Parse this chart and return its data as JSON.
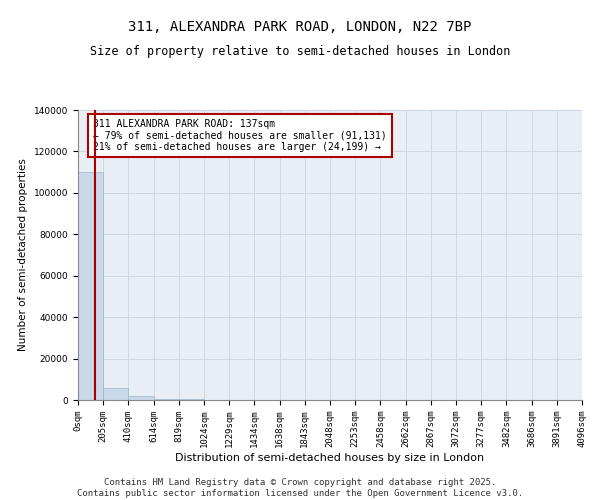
{
  "title": "311, ALEXANDRA PARK ROAD, LONDON, N22 7BP",
  "subtitle": "Size of property relative to semi-detached houses in London",
  "xlabel": "Distribution of semi-detached houses by size in London",
  "ylabel": "Number of semi-detached properties",
  "property_size": 137,
  "property_label": "311 ALEXANDRA PARK ROAD: 137sqm",
  "pct_smaller": 79,
  "count_smaller": 91131,
  "pct_larger": 21,
  "count_larger": 24199,
  "bar_color": "#c9d9ea",
  "bar_edgecolor": "#9ab5cc",
  "vline_color": "#aa0000",
  "annotation_edgecolor": "#aa0000",
  "grid_color": "#c8d4e0",
  "background_color": "#e8eef4",
  "bin_edges": [
    0,
    205,
    410,
    614,
    819,
    1024,
    1229,
    1434,
    1638,
    1843,
    2048,
    2253,
    2458,
    2662,
    2867,
    3072,
    3277,
    3482,
    3686,
    3891,
    4096
  ],
  "bin_counts": [
    110000,
    6000,
    1800,
    700,
    300,
    180,
    100,
    70,
    50,
    35,
    25,
    20,
    15,
    12,
    10,
    8,
    6,
    5,
    4,
    3
  ],
  "ylim": [
    0,
    140000
  ],
  "yticks": [
    0,
    20000,
    40000,
    60000,
    80000,
    100000,
    120000,
    140000
  ],
  "footer": "Contains HM Land Registry data © Crown copyright and database right 2025.\nContains public sector information licensed under the Open Government Licence v3.0.",
  "title_fontsize": 10,
  "subtitle_fontsize": 8.5,
  "tick_fontsize": 6.5,
  "ylabel_fontsize": 7.5,
  "xlabel_fontsize": 8,
  "footer_fontsize": 6.5,
  "annot_fontsize": 7
}
